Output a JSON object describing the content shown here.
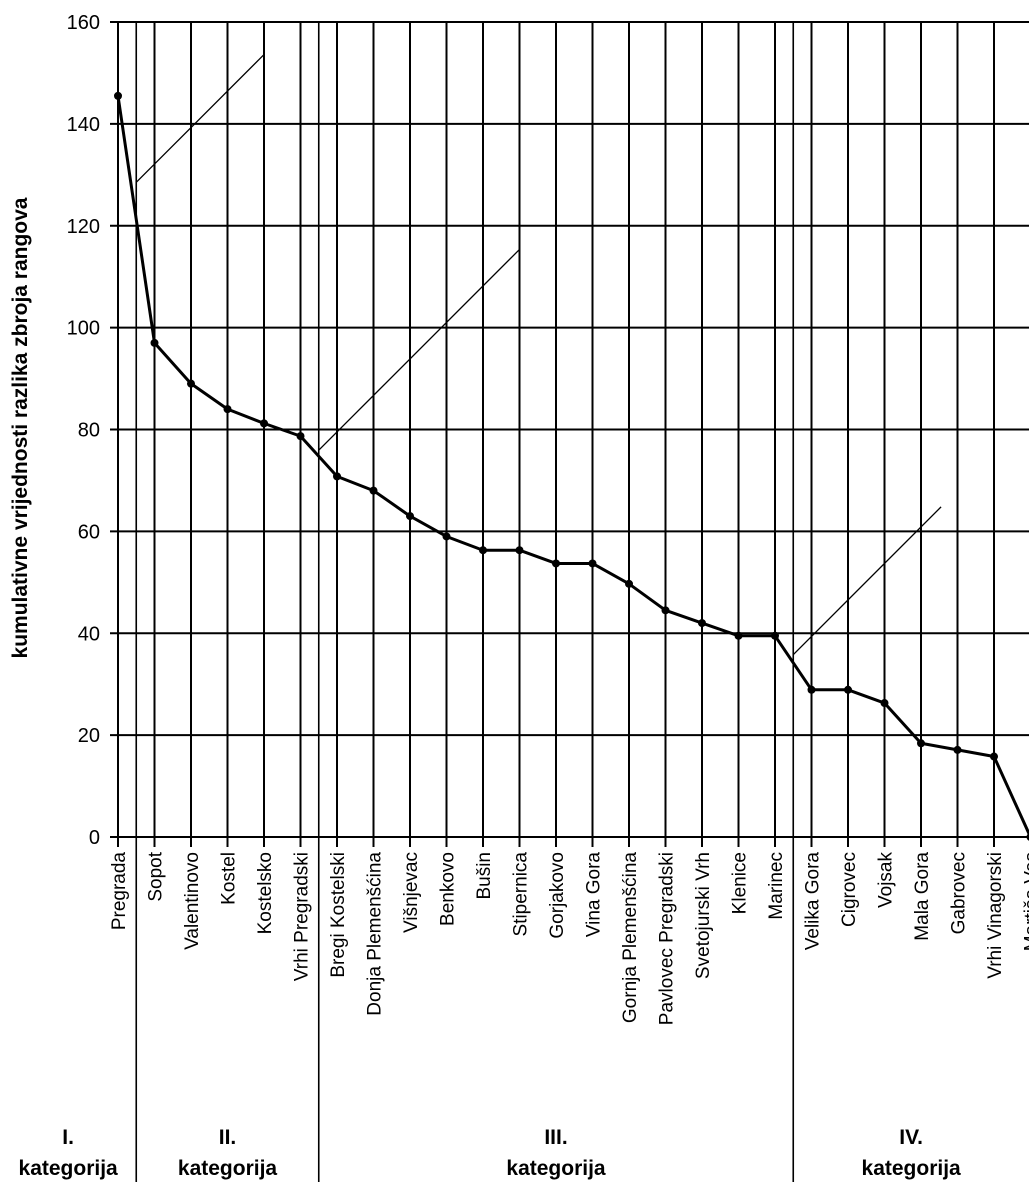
{
  "chart_data": {
    "type": "line",
    "ylabel": "kumulativne vrijednosti razlika zbroja rangova",
    "xlabel": "",
    "ylim": [
      0,
      160
    ],
    "yticks": [
      0,
      20,
      40,
      60,
      80,
      100,
      120,
      140,
      160
    ],
    "grid": true,
    "categories": [
      "Pregrada",
      "Sopot",
      "Valentinovo",
      "Kostel",
      "Kostelsko",
      "Vrhi Pregradski",
      "Bregi Kostelski",
      "Donja Plemenšćina",
      "Višnjevac",
      "Benkovo",
      "Bušin",
      "Stipernica",
      "Gorjakovo",
      "Vina Gora",
      "Gornja Plemenšćina",
      "Pavlovec Pregradski",
      "Svetojurski Vrh",
      "Klenice",
      "Marinec",
      "Velika Gora",
      "Cigrovec",
      "Vojsak",
      "Mala Gora",
      "Gabrovec",
      "Vrhi Vinagorski",
      "Martiša Ves"
    ],
    "series": [
      {
        "values": [
          145.5,
          97,
          89,
          84,
          81.2,
          78.7,
          70.8,
          68,
          63,
          59,
          56.3,
          56.3,
          53.7,
          53.7,
          49.7,
          44.5,
          42,
          39.5,
          39.5,
          28.9,
          28.9,
          26.3,
          18.4,
          17.1,
          15.8,
          0
        ]
      }
    ],
    "groups": [
      {
        "roman": "I.",
        "label": "kategorija",
        "first": 0,
        "last": 0
      },
      {
        "roman": "II.",
        "label": "kategorija",
        "first": 1,
        "last": 5
      },
      {
        "roman": "III.",
        "label": "kategorija",
        "first": 6,
        "last": 18
      },
      {
        "roman": "IV.",
        "label": "kategorija",
        "first": 19,
        "last": 25
      }
    ],
    "line_color": "#000000",
    "grid_color": "#000000"
  }
}
